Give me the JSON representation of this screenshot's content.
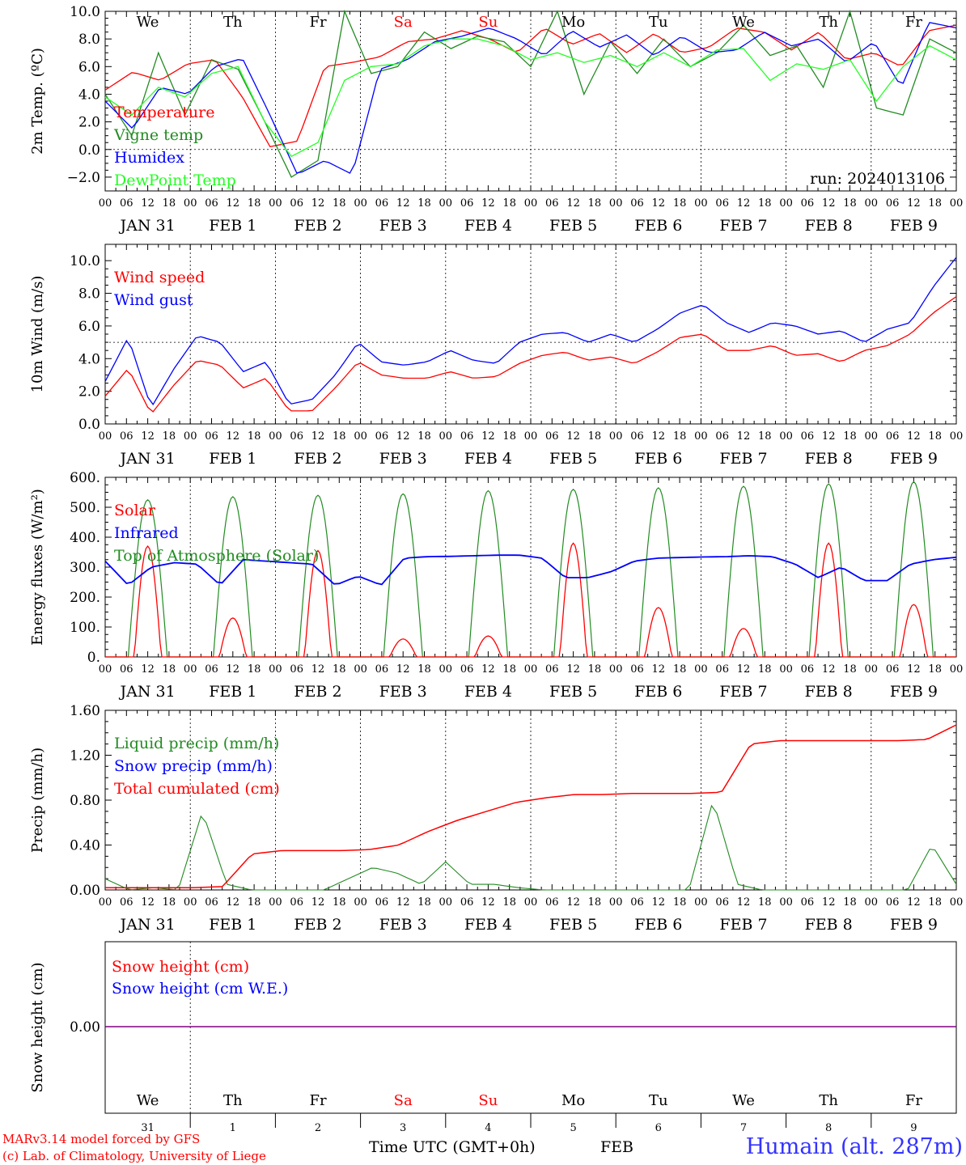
{
  "chart_data": [
    {
      "type": "line",
      "ylabel": "2m Temp. (ºC)",
      "ylim": [
        -3,
        10
      ],
      "yticks": [
        "−2.0",
        "0.0",
        "2.0",
        "4.0",
        "6.0",
        "8.0",
        "10.0"
      ],
      "ytick_values": [
        -2,
        0,
        2,
        4,
        6,
        8,
        10
      ],
      "ref_line": 0,
      "weekdays": [
        {
          "label": "We",
          "color": "#000000"
        },
        {
          "label": "Th",
          "color": "#000000"
        },
        {
          "label": "Fr",
          "color": "#000000"
        },
        {
          "label": "Sa",
          "color": "#ff0000"
        },
        {
          "label": "Su",
          "color": "#ff0000"
        },
        {
          "label": "Mo",
          "color": "#000000"
        },
        {
          "label": "Tu",
          "color": "#000000"
        },
        {
          "label": "We",
          "color": "#000000"
        },
        {
          "label": "Th",
          "color": "#000000"
        },
        {
          "label": "Fr",
          "color": "#000000"
        }
      ],
      "annotation": "run: 2024013106",
      "x_hours": [
        0,
        6,
        12,
        18,
        24,
        30,
        36,
        42,
        48,
        54,
        60,
        66,
        72,
        78,
        84,
        90,
        96,
        102,
        108,
        114,
        120,
        126,
        132,
        138,
        144,
        150,
        156,
        162,
        168,
        174,
        180,
        186,
        192,
        198,
        204,
        210,
        216,
        222,
        228,
        234,
        240
      ],
      "series": [
        {
          "name": "Temperature",
          "color": "#ff0000",
          "values": [
            4.3,
            5.6,
            5.0,
            6.2,
            6.5,
            3.8,
            0.2,
            0.6,
            6.0,
            6.3,
            6.7,
            7.8,
            8.0,
            8.6,
            8.0,
            7.0,
            8.8,
            7.6,
            8.4,
            7.0,
            8.4,
            7.0,
            7.4,
            8.8,
            8.5,
            7.2,
            8.5,
            6.5,
            7.0,
            6.0,
            8.6,
            9.0
          ]
        },
        {
          "name": "Vigne temp",
          "color": "#228b22",
          "values": [
            4.0,
            1.0,
            7.0,
            2.5,
            6.5,
            5.8,
            2.0,
            -2.0,
            -0.8,
            10.0,
            5.5,
            6.0,
            8.5,
            7.3,
            8.2,
            7.8,
            6.0,
            10.0,
            4.0,
            7.8,
            5.5,
            8.0,
            6.0,
            7.0,
            9.0,
            6.8,
            7.5,
            4.5,
            10.0,
            3.0,
            2.5,
            8.0,
            7.0
          ]
        },
        {
          "name": "Humidex",
          "color": "#0000ff",
          "values": [
            3.5,
            1.5,
            4.5,
            4.0,
            6.0,
            6.6,
            2.5,
            -1.8,
            -0.8,
            -1.8,
            5.8,
            6.5,
            7.8,
            8.2,
            8.8,
            8.0,
            6.8,
            8.6,
            7.4,
            8.3,
            6.8,
            8.2,
            7.0,
            7.2,
            8.5,
            7.5,
            8.0,
            6.3,
            7.8,
            4.5,
            9.2,
            8.8
          ]
        },
        {
          "name": "DewPoint Temp",
          "color": "#22ff22",
          "values": [
            3.8,
            2.5,
            4.5,
            3.8,
            5.5,
            6.0,
            2.0,
            -0.5,
            0.5,
            5.0,
            6.0,
            6.2,
            7.5,
            8.0,
            8.0,
            7.5,
            6.5,
            7.0,
            6.3,
            6.8,
            6.0,
            7.0,
            6.0,
            7.2,
            7.3,
            5.0,
            6.2,
            5.8,
            6.5,
            3.5,
            6.0,
            7.5,
            6.5
          ]
        }
      ]
    },
    {
      "type": "line",
      "ylabel": "10m Wind (m/s)",
      "ylim": [
        0,
        11
      ],
      "yticks": [
        "0.0",
        "2.0",
        "4.0",
        "6.0",
        "8.0",
        "10.0"
      ],
      "ytick_values": [
        0,
        2,
        4,
        6,
        8,
        10
      ],
      "ref_line": 5,
      "series": [
        {
          "name": "Wind speed",
          "color": "#ff0000",
          "values": [
            1.7,
            3.4,
            0.6,
            2.4,
            3.9,
            3.6,
            2.2,
            2.8,
            0.8,
            0.8,
            2.2,
            3.8,
            3.0,
            2.8,
            2.8,
            3.2,
            2.8,
            2.9,
            3.7,
            4.2,
            4.4,
            3.9,
            4.1,
            3.7,
            4.4,
            5.3,
            5.5,
            4.5,
            4.5,
            4.8,
            4.2,
            4.3,
            3.8,
            4.5,
            4.8,
            5.5,
            6.8,
            7.8
          ]
        },
        {
          "name": "Wind gust",
          "color": "#0000ff",
          "values": [
            2.6,
            5.3,
            1.0,
            3.4,
            5.4,
            5.0,
            3.2,
            3.8,
            1.2,
            1.5,
            3.0,
            5.0,
            3.8,
            3.6,
            3.8,
            4.5,
            3.9,
            3.7,
            5.0,
            5.5,
            5.6,
            5.0,
            5.5,
            5.0,
            5.8,
            6.8,
            7.3,
            6.2,
            5.6,
            6.2,
            6.0,
            5.5,
            5.7,
            5.0,
            5.8,
            6.2,
            8.4,
            10.2
          ]
        }
      ]
    },
    {
      "type": "line",
      "ylabel": "Energy fluxes (W/m²)",
      "ylim": [
        0,
        600
      ],
      "yticks": [
        "0.",
        "100.",
        "200.",
        "300.",
        "400.",
        "500.",
        "600."
      ],
      "ytick_values": [
        0,
        100,
        200,
        300,
        400,
        500,
        600
      ],
      "series": [
        {
          "name": "Solar",
          "color": "#ff0000",
          "daily_peaks": [
            370,
            130,
            355,
            60,
            70,
            380,
            165,
            95,
            380,
            175
          ]
        },
        {
          "name": "Infrared",
          "color": "#0000ff",
          "values": [
            320,
            240,
            300,
            315,
            310,
            240,
            325,
            320,
            315,
            310,
            240,
            270,
            240,
            330,
            335,
            336,
            338,
            340,
            340,
            330,
            265,
            265,
            285,
            320,
            330,
            332,
            334,
            335,
            338,
            335,
            310,
            265,
            300,
            255,
            255,
            310,
            325,
            333
          ]
        },
        {
          "name": "Top of Atmosphere (Solar)",
          "color": "#228b22",
          "daily_peaks": [
            525,
            535,
            540,
            545,
            555,
            560,
            565,
            570,
            578,
            585
          ]
        }
      ]
    },
    {
      "type": "line",
      "ylabel": "Precip (mm/h)",
      "ylim": [
        0,
        1.6
      ],
      "yticks": [
        "0.00",
        "0.40",
        "0.80",
        "1.20",
        "1.60"
      ],
      "ytick_values": [
        0,
        0.4,
        0.8,
        1.2,
        1.6
      ],
      "series": [
        {
          "name": "Liquid precip (mm/h)",
          "color": "#228b22",
          "values": [
            0.1,
            0.0,
            0.02,
            0.0,
            0.7,
            0.05,
            0.0,
            0.0,
            0.0,
            0.0,
            0.1,
            0.2,
            0.15,
            0.05,
            0.25,
            0.05,
            0.05,
            0.02,
            0.0,
            0.0,
            0.0,
            0.0,
            0.0,
            0.0,
            0.0,
            0.8,
            0.05,
            0.0,
            0.0,
            0.0,
            0.0,
            0.0,
            0.0,
            0.0,
            0.4,
            0.05
          ]
        },
        {
          "name": "Snow precip (mm/h)",
          "color": "#0000ff",
          "values": [
            0.0,
            0.0
          ]
        },
        {
          "name": "Total cumulated (cm)",
          "color": "#ff0000",
          "values": [
            0.02,
            0.02,
            0.02,
            0.02,
            0.03,
            0.32,
            0.35,
            0.35,
            0.35,
            0.36,
            0.4,
            0.52,
            0.62,
            0.7,
            0.78,
            0.82,
            0.85,
            0.85,
            0.86,
            0.86,
            0.86,
            0.87,
            1.3,
            1.33,
            1.33,
            1.33,
            1.33,
            1.33,
            1.34,
            1.47
          ]
        }
      ]
    },
    {
      "type": "line",
      "ylabel": "Snow height (cm)",
      "yticks": [
        "0.00"
      ],
      "ytick_values": [
        0
      ],
      "series": [
        {
          "name": "Snow height (cm)",
          "color": "#ff0000",
          "values": [
            0.0,
            0.0
          ]
        },
        {
          "name": "Snow height (cm W.E.)",
          "color": "#0000ff",
          "values": [
            0.0,
            0.0
          ]
        }
      ]
    }
  ],
  "x_axis": {
    "hour_ticks": [
      "00",
      "06",
      "12",
      "18"
    ],
    "date_labels": [
      "JAN 31",
      "FEB 1",
      "FEB 2",
      "FEB 3",
      "FEB 4",
      "FEB 5",
      "FEB 6",
      "FEB 7",
      "FEB 8",
      "FEB 9"
    ],
    "bottom_day_numbers": [
      "31",
      "1",
      "2",
      "3",
      "4",
      "5",
      "6",
      "7",
      "8",
      "9"
    ],
    "bottom_month": "FEB",
    "xlabel": "Time UTC (GMT+0h)"
  },
  "footer": {
    "credit_line1": "MARv3.14 model forced by GFS",
    "credit_line2": "(c) Lab. of Climatology, University of Liege",
    "station": "Humain (alt. 287m)"
  },
  "colors": {
    "red": "#ff0000",
    "green": "#228b22",
    "blue": "#0000ff",
    "lightgreen": "#22ff22",
    "station_blue": "#3333ff",
    "purple": "#800080"
  }
}
